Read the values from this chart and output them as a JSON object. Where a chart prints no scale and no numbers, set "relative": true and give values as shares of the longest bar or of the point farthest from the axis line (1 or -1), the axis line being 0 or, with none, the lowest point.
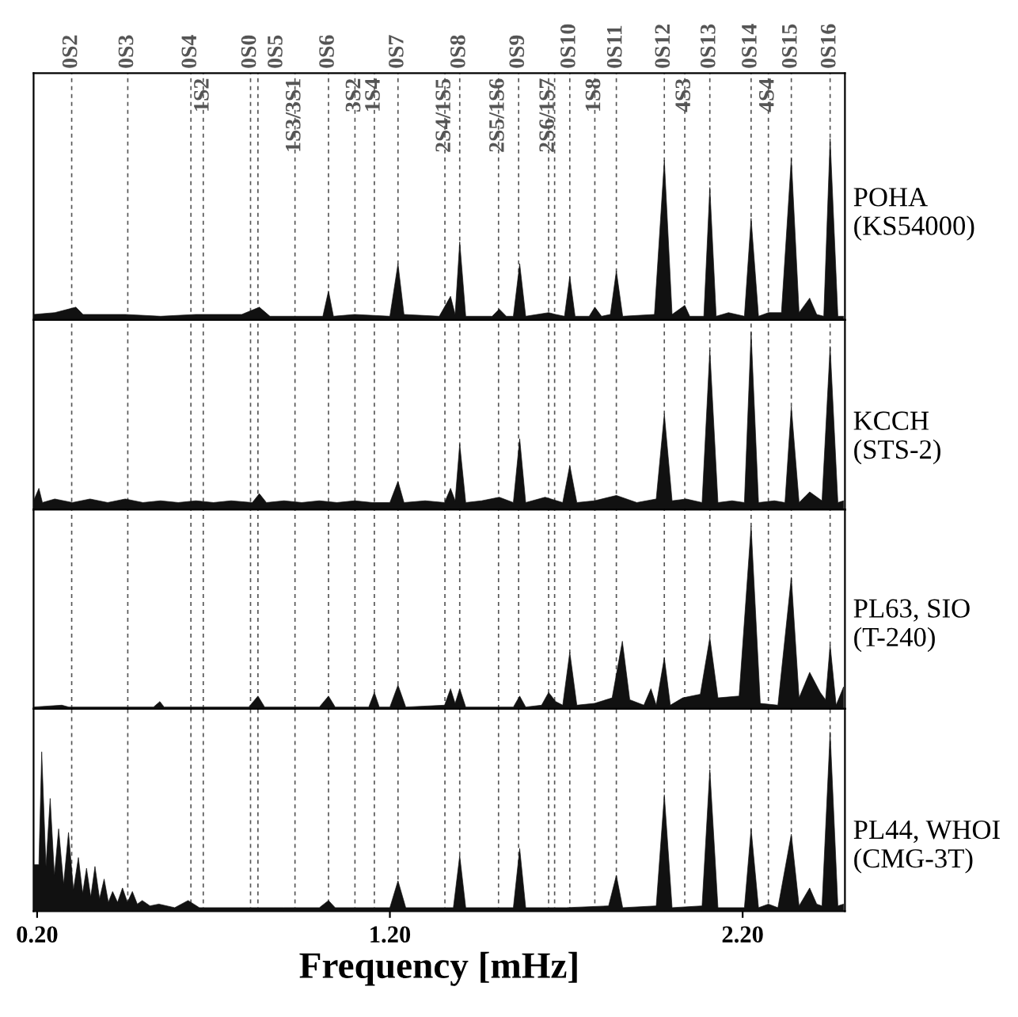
{
  "chart_data": [
    {
      "type": "area",
      "relative": true,
      "xlim": [
        0.19,
        2.49
      ],
      "tick_labels": false,
      "annotations": [
        "POHA\n(KS54000)",
        {
          "text": "1S2",
          "x": 0.671
        },
        {
          "text": "1S3/3S1",
          "x": 0.931
        },
        {
          "text": "3S2",
          "x": 1.101
        },
        {
          "text": "1S4",
          "x": 1.156
        },
        {
          "text": "2S4/1S5",
          "x": 1.356
        },
        {
          "text": "2S5/1S6",
          "x": 1.508
        },
        {
          "text": "2S6/1S7",
          "x": 1.65
        },
        {
          "text": "1S8",
          "x": 1.781
        },
        {
          "text": "4S3",
          "x": 2.036
        },
        {
          "text": "4S4",
          "x": 2.273
        }
      ],
      "series": [
        {
          "color": "#111111",
          "x": [
            0.19,
            0.25,
            0.31,
            0.33,
            0.45,
            0.55,
            0.65,
            0.78,
            0.83,
            0.86,
            0.95,
            1.01,
            1.026,
            1.04,
            1.1,
            1.2,
            1.223,
            1.24,
            1.34,
            1.372,
            1.385,
            1.398,
            1.415,
            1.49,
            1.51,
            1.53,
            1.55,
            1.568,
            1.585,
            1.65,
            1.67,
            1.695,
            1.71,
            1.725,
            1.765,
            1.781,
            1.8,
            1.825,
            1.842,
            1.86,
            1.95,
            1.978,
            2.0,
            2.036,
            2.05,
            2.09,
            2.107,
            2.125,
            2.16,
            2.205,
            2.224,
            2.245,
            2.273,
            2.31,
            2.338,
            2.36,
            2.39,
            2.41,
            2.43,
            2.448,
            2.47,
            2.486
          ],
          "values": [
            0.03,
            0.04,
            0.07,
            0.03,
            0.03,
            0.02,
            0.03,
            0.03,
            0.07,
            0.02,
            0.02,
            0.02,
            0.16,
            0.02,
            0.03,
            0.02,
            0.31,
            0.03,
            0.02,
            0.13,
            0.03,
            0.43,
            0.02,
            0.02,
            0.06,
            0.02,
            0.02,
            0.31,
            0.02,
            0.04,
            0.03,
            0.02,
            0.24,
            0.02,
            0.02,
            0.07,
            0.02,
            0.03,
            0.27,
            0.02,
            0.03,
            0.88,
            0.03,
            0.08,
            0.02,
            0.02,
            0.73,
            0.02,
            0.04,
            0.02,
            0.56,
            0.02,
            0.04,
            0.04,
            0.89,
            0.04,
            0.12,
            0.03,
            0.02,
            1.0,
            0.02,
            0.02
          ]
        }
      ],
      "ref_lines": [
        {
          "axis": "x",
          "value": 0.298,
          "label": "0S2",
          "color": "#555555",
          "line_style": "dashed"
        },
        {
          "axis": "x",
          "value": 0.457,
          "label": "0S3",
          "color": "#555555",
          "line_style": "dashed"
        },
        {
          "axis": "x",
          "value": 0.636,
          "label": "0S4",
          "color": "#555555",
          "line_style": "dashed"
        },
        {
          "axis": "x",
          "value": 0.671,
          "label": null,
          "color": "#555555",
          "line_style": "dashed"
        },
        {
          "axis": "x",
          "value": 0.805,
          "label": "0S0",
          "color": "#555555",
          "line_style": "dashed"
        },
        {
          "axis": "x",
          "value": 0.826,
          "label": "0S5",
          "color": "#555555",
          "line_style": "dashed"
        },
        {
          "axis": "x",
          "value": 0.931,
          "label": null,
          "color": "#555555",
          "line_style": "dashed"
        },
        {
          "axis": "x",
          "value": 1.026,
          "label": "0S6",
          "color": "#555555",
          "line_style": "dashed"
        },
        {
          "axis": "x",
          "value": 1.101,
          "label": null,
          "color": "#555555",
          "line_style": "dashed"
        },
        {
          "axis": "x",
          "value": 1.156,
          "label": null,
          "color": "#555555",
          "line_style": "dashed"
        },
        {
          "axis": "x",
          "value": 1.223,
          "label": "0S7",
          "color": "#555555",
          "line_style": "dashed"
        },
        {
          "axis": "x",
          "value": 1.356,
          "label": null,
          "color": "#555555",
          "line_style": "dashed"
        },
        {
          "axis": "x",
          "value": 1.398,
          "label": "0S8",
          "color": "#555555",
          "line_style": "dashed"
        },
        {
          "axis": "x",
          "value": 1.508,
          "label": null,
          "color": "#555555",
          "line_style": "dashed"
        },
        {
          "axis": "x",
          "value": 1.565,
          "label": "0S9",
          "color": "#555555",
          "line_style": "dashed"
        },
        {
          "axis": "x",
          "value": 1.65,
          "label": null,
          "color": "#555555",
          "line_style": "dashed"
        },
        {
          "axis": "x",
          "value": 1.667,
          "label": null,
          "color": "#555555",
          "line_style": "dashed"
        },
        {
          "axis": "x",
          "value": 1.71,
          "label": "0S10",
          "color": "#555555",
          "line_style": "dashed"
        },
        {
          "axis": "x",
          "value": 1.781,
          "label": null,
          "color": "#555555",
          "line_style": "dashed"
        },
        {
          "axis": "x",
          "value": 1.842,
          "label": "0S11",
          "color": "#555555",
          "line_style": "dashed"
        },
        {
          "axis": "x",
          "value": 1.978,
          "label": "0S12",
          "color": "#555555",
          "line_style": "dashed"
        },
        {
          "axis": "x",
          "value": 2.036,
          "label": null,
          "color": "#555555",
          "line_style": "dashed"
        },
        {
          "axis": "x",
          "value": 2.107,
          "label": "0S13",
          "color": "#555555",
          "line_style": "dashed"
        },
        {
          "axis": "x",
          "value": 2.224,
          "label": "0S14",
          "color": "#555555",
          "line_style": "dashed"
        },
        {
          "axis": "x",
          "value": 2.273,
          "label": null,
          "color": "#555555",
          "line_style": "dashed"
        },
        {
          "axis": "x",
          "value": 2.338,
          "label": "0S15",
          "color": "#555555",
          "line_style": "dashed"
        },
        {
          "axis": "x",
          "value": 2.448,
          "label": "0S16",
          "color": "#555555",
          "line_style": "dashed"
        }
      ]
    },
    {
      "type": "area",
      "relative": true,
      "xlim": [
        0.19,
        2.49
      ],
      "tick_labels": false,
      "annotations": [
        "KCCH\n(STS-2)"
      ],
      "series": [
        {
          "color": "#111111",
          "x": [
            0.19,
            0.205,
            0.215,
            0.25,
            0.3,
            0.35,
            0.4,
            0.45,
            0.5,
            0.55,
            0.6,
            0.65,
            0.7,
            0.75,
            0.81,
            0.83,
            0.85,
            0.9,
            0.95,
            1.0,
            1.05,
            1.1,
            1.15,
            1.2,
            1.223,
            1.24,
            1.3,
            1.355,
            1.372,
            1.385,
            1.398,
            1.415,
            1.46,
            1.51,
            1.55,
            1.568,
            1.585,
            1.64,
            1.69,
            1.71,
            1.73,
            1.78,
            1.842,
            1.9,
            1.955,
            1.978,
            2.0,
            2.04,
            2.085,
            2.107,
            2.13,
            2.17,
            2.205,
            2.224,
            2.245,
            2.29,
            2.32,
            2.338,
            2.36,
            2.39,
            2.425,
            2.448,
            2.47,
            2.486
          ],
          "values": [
            0.05,
            0.12,
            0.04,
            0.06,
            0.04,
            0.06,
            0.04,
            0.06,
            0.04,
            0.05,
            0.04,
            0.05,
            0.04,
            0.05,
            0.04,
            0.09,
            0.04,
            0.05,
            0.04,
            0.05,
            0.04,
            0.05,
            0.04,
            0.04,
            0.16,
            0.04,
            0.05,
            0.04,
            0.12,
            0.05,
            0.37,
            0.04,
            0.05,
            0.07,
            0.04,
            0.4,
            0.04,
            0.07,
            0.04,
            0.25,
            0.04,
            0.05,
            0.08,
            0.04,
            0.06,
            0.54,
            0.05,
            0.06,
            0.04,
            0.9,
            0.04,
            0.05,
            0.04,
            1.0,
            0.04,
            0.05,
            0.04,
            0.58,
            0.04,
            0.1,
            0.05,
            0.92,
            0.04,
            0.05
          ]
        }
      ],
      "ref_lines": [
        {
          "axis": "x",
          "value": 0.298,
          "color": "#555555",
          "line_style": "dashed"
        },
        {
          "axis": "x",
          "value": 0.457,
          "color": "#555555",
          "line_style": "dashed"
        },
        {
          "axis": "x",
          "value": 0.636,
          "color": "#555555",
          "line_style": "dashed"
        },
        {
          "axis": "x",
          "value": 0.671,
          "color": "#555555",
          "line_style": "dashed"
        },
        {
          "axis": "x",
          "value": 0.805,
          "color": "#555555",
          "line_style": "dashed"
        },
        {
          "axis": "x",
          "value": 0.826,
          "color": "#555555",
          "line_style": "dashed"
        },
        {
          "axis": "x",
          "value": 0.931,
          "color": "#555555",
          "line_style": "dashed"
        },
        {
          "axis": "x",
          "value": 1.026,
          "color": "#555555",
          "line_style": "dashed"
        },
        {
          "axis": "x",
          "value": 1.101,
          "color": "#555555",
          "line_style": "dashed"
        },
        {
          "axis": "x",
          "value": 1.156,
          "color": "#555555",
          "line_style": "dashed"
        },
        {
          "axis": "x",
          "value": 1.223,
          "color": "#555555",
          "line_style": "dashed"
        },
        {
          "axis": "x",
          "value": 1.356,
          "color": "#555555",
          "line_style": "dashed"
        },
        {
          "axis": "x",
          "value": 1.398,
          "color": "#555555",
          "line_style": "dashed"
        },
        {
          "axis": "x",
          "value": 1.508,
          "color": "#555555",
          "line_style": "dashed"
        },
        {
          "axis": "x",
          "value": 1.565,
          "color": "#555555",
          "line_style": "dashed"
        },
        {
          "axis": "x",
          "value": 1.65,
          "color": "#555555",
          "line_style": "dashed"
        },
        {
          "axis": "x",
          "value": 1.667,
          "color": "#555555",
          "line_style": "dashed"
        },
        {
          "axis": "x",
          "value": 1.71,
          "color": "#555555",
          "line_style": "dashed"
        },
        {
          "axis": "x",
          "value": 1.781,
          "color": "#555555",
          "line_style": "dashed"
        },
        {
          "axis": "x",
          "value": 1.842,
          "color": "#555555",
          "line_style": "dashed"
        },
        {
          "axis": "x",
          "value": 1.978,
          "color": "#555555",
          "line_style": "dashed"
        },
        {
          "axis": "x",
          "value": 2.036,
          "color": "#555555",
          "line_style": "dashed"
        },
        {
          "axis": "x",
          "value": 2.107,
          "color": "#555555",
          "line_style": "dashed"
        },
        {
          "axis": "x",
          "value": 2.224,
          "color": "#555555",
          "line_style": "dashed"
        },
        {
          "axis": "x",
          "value": 2.273,
          "color": "#555555",
          "line_style": "dashed"
        },
        {
          "axis": "x",
          "value": 2.338,
          "color": "#555555",
          "line_style": "dashed"
        },
        {
          "axis": "x",
          "value": 2.448,
          "color": "#555555",
          "line_style": "dashed"
        }
      ]
    },
    {
      "type": "area",
      "relative": true,
      "xlim": [
        0.19,
        2.49
      ],
      "tick_labels": false,
      "annotations": [
        "PL63, SIO\n(T-240)"
      ],
      "series": [
        {
          "color": "#111111",
          "x": [
            0.19,
            0.27,
            0.29,
            0.53,
            0.548,
            0.56,
            0.8,
            0.826,
            0.845,
            1.0,
            1.026,
            1.045,
            1.14,
            1.156,
            1.17,
            1.2,
            1.223,
            1.245,
            1.355,
            1.372,
            1.385,
            1.398,
            1.415,
            1.55,
            1.568,
            1.585,
            1.63,
            1.65,
            1.67,
            1.69,
            1.71,
            1.73,
            1.78,
            1.83,
            1.859,
            1.88,
            1.92,
            1.94,
            1.955,
            1.978,
            1.995,
            2.03,
            2.08,
            2.107,
            2.13,
            2.19,
            2.224,
            2.25,
            2.3,
            2.338,
            2.36,
            2.39,
            2.42,
            2.435,
            2.448,
            2.465,
            2.486
          ],
          "values": [
            0.01,
            0.02,
            0.01,
            0.01,
            0.04,
            0.01,
            0.01,
            0.07,
            0.01,
            0.01,
            0.07,
            0.01,
            0.01,
            0.09,
            0.01,
            0.01,
            0.13,
            0.01,
            0.02,
            0.11,
            0.03,
            0.11,
            0.01,
            0.01,
            0.07,
            0.01,
            0.02,
            0.09,
            0.04,
            0.02,
            0.31,
            0.02,
            0.03,
            0.06,
            0.37,
            0.05,
            0.02,
            0.11,
            0.02,
            0.28,
            0.02,
            0.06,
            0.08,
            0.39,
            0.06,
            0.07,
            1.0,
            0.03,
            0.02,
            0.72,
            0.06,
            0.2,
            0.09,
            0.05,
            0.35,
            0.02,
            0.12
          ]
        }
      ],
      "ref_lines": [
        {
          "axis": "x",
          "value": 0.298,
          "color": "#555555",
          "line_style": "dashed"
        },
        {
          "axis": "x",
          "value": 0.457,
          "color": "#555555",
          "line_style": "dashed"
        },
        {
          "axis": "x",
          "value": 0.636,
          "color": "#555555",
          "line_style": "dashed"
        },
        {
          "axis": "x",
          "value": 0.671,
          "color": "#555555",
          "line_style": "dashed"
        },
        {
          "axis": "x",
          "value": 0.805,
          "color": "#555555",
          "line_style": "dashed"
        },
        {
          "axis": "x",
          "value": 0.826,
          "color": "#555555",
          "line_style": "dashed"
        },
        {
          "axis": "x",
          "value": 0.931,
          "color": "#555555",
          "line_style": "dashed"
        },
        {
          "axis": "x",
          "value": 1.026,
          "color": "#555555",
          "line_style": "dashed"
        },
        {
          "axis": "x",
          "value": 1.101,
          "color": "#555555",
          "line_style": "dashed"
        },
        {
          "axis": "x",
          "value": 1.156,
          "color": "#555555",
          "line_style": "dashed"
        },
        {
          "axis": "x",
          "value": 1.223,
          "color": "#555555",
          "line_style": "dashed"
        },
        {
          "axis": "x",
          "value": 1.356,
          "color": "#555555",
          "line_style": "dashed"
        },
        {
          "axis": "x",
          "value": 1.398,
          "color": "#555555",
          "line_style": "dashed"
        },
        {
          "axis": "x",
          "value": 1.508,
          "color": "#555555",
          "line_style": "dashed"
        },
        {
          "axis": "x",
          "value": 1.565,
          "color": "#555555",
          "line_style": "dashed"
        },
        {
          "axis": "x",
          "value": 1.65,
          "color": "#555555",
          "line_style": "dashed"
        },
        {
          "axis": "x",
          "value": 1.667,
          "color": "#555555",
          "line_style": "dashed"
        },
        {
          "axis": "x",
          "value": 1.71,
          "color": "#555555",
          "line_style": "dashed"
        },
        {
          "axis": "x",
          "value": 1.781,
          "color": "#555555",
          "line_style": "dashed"
        },
        {
          "axis": "x",
          "value": 1.842,
          "color": "#555555",
          "line_style": "dashed"
        },
        {
          "axis": "x",
          "value": 1.978,
          "color": "#555555",
          "line_style": "dashed"
        },
        {
          "axis": "x",
          "value": 2.036,
          "color": "#555555",
          "line_style": "dashed"
        },
        {
          "axis": "x",
          "value": 2.107,
          "color": "#555555",
          "line_style": "dashed"
        },
        {
          "axis": "x",
          "value": 2.224,
          "color": "#555555",
          "line_style": "dashed"
        },
        {
          "axis": "x",
          "value": 2.273,
          "color": "#555555",
          "line_style": "dashed"
        },
        {
          "axis": "x",
          "value": 2.338,
          "color": "#555555",
          "line_style": "dashed"
        },
        {
          "axis": "x",
          "value": 2.448,
          "color": "#555555",
          "line_style": "dashed"
        }
      ]
    },
    {
      "type": "area",
      "relative": true,
      "xlim": [
        0.19,
        2.49
      ],
      "tick_labels": "x",
      "xlabel": "Frequency [mHz]",
      "xticks": [
        {
          "value": 0.2,
          "label": "0.20"
        },
        {
          "value": 1.2,
          "label": "1.20"
        },
        {
          "value": 2.2,
          "label": "2.20"
        }
      ],
      "annotations": [
        "PL44, WHOI\n(CMG-3T)"
      ],
      "series": [
        {
          "color": "#111111",
          "x": [
            0.19,
            0.205,
            0.213,
            0.225,
            0.237,
            0.249,
            0.261,
            0.275,
            0.289,
            0.303,
            0.317,
            0.329,
            0.34,
            0.352,
            0.364,
            0.377,
            0.39,
            0.402,
            0.414,
            0.428,
            0.442,
            0.456,
            0.47,
            0.484,
            0.498,
            0.52,
            0.545,
            0.59,
            0.628,
            0.66,
            0.8,
            0.9,
            1.0,
            1.026,
            1.045,
            1.2,
            1.223,
            1.245,
            1.38,
            1.398,
            1.415,
            1.55,
            1.568,
            1.585,
            1.7,
            1.82,
            1.842,
            1.86,
            1.955,
            1.978,
            2.0,
            2.085,
            2.107,
            2.13,
            2.205,
            2.224,
            2.245,
            2.273,
            2.3,
            2.338,
            2.36,
            2.39,
            2.41,
            2.425,
            2.448,
            2.47,
            2.486
          ],
          "values": [
            0.26,
            0.26,
            0.89,
            0.25,
            0.63,
            0.2,
            0.46,
            0.15,
            0.44,
            0.12,
            0.3,
            0.1,
            0.24,
            0.08,
            0.25,
            0.07,
            0.18,
            0.05,
            0.11,
            0.05,
            0.13,
            0.05,
            0.11,
            0.04,
            0.06,
            0.03,
            0.04,
            0.02,
            0.06,
            0.02,
            0.02,
            0.02,
            0.02,
            0.06,
            0.02,
            0.02,
            0.17,
            0.02,
            0.02,
            0.31,
            0.02,
            0.02,
            0.35,
            0.02,
            0.02,
            0.03,
            0.2,
            0.02,
            0.03,
            0.65,
            0.02,
            0.03,
            0.79,
            0.02,
            0.02,
            0.46,
            0.02,
            0.04,
            0.02,
            0.43,
            0.03,
            0.13,
            0.04,
            0.03,
            1.0,
            0.03,
            0.04
          ]
        }
      ],
      "ref_lines": [
        {
          "axis": "x",
          "value": 0.298,
          "color": "#555555",
          "line_style": "dashed"
        },
        {
          "axis": "x",
          "value": 0.457,
          "color": "#555555",
          "line_style": "dashed"
        },
        {
          "axis": "x",
          "value": 0.636,
          "color": "#555555",
          "line_style": "dashed"
        },
        {
          "axis": "x",
          "value": 0.671,
          "color": "#555555",
          "line_style": "dashed"
        },
        {
          "axis": "x",
          "value": 0.805,
          "color": "#555555",
          "line_style": "dashed"
        },
        {
          "axis": "x",
          "value": 0.826,
          "color": "#555555",
          "line_style": "dashed"
        },
        {
          "axis": "x",
          "value": 0.931,
          "color": "#555555",
          "line_style": "dashed"
        },
        {
          "axis": "x",
          "value": 1.026,
          "color": "#555555",
          "line_style": "dashed"
        },
        {
          "axis": "x",
          "value": 1.101,
          "color": "#555555",
          "line_style": "dashed"
        },
        {
          "axis": "x",
          "value": 1.156,
          "color": "#555555",
          "line_style": "dashed"
        },
        {
          "axis": "x",
          "value": 1.223,
          "color": "#555555",
          "line_style": "dashed"
        },
        {
          "axis": "x",
          "value": 1.356,
          "color": "#555555",
          "line_style": "dashed"
        },
        {
          "axis": "x",
          "value": 1.398,
          "color": "#555555",
          "line_style": "dashed"
        },
        {
          "axis": "x",
          "value": 1.508,
          "color": "#555555",
          "line_style": "dashed"
        },
        {
          "axis": "x",
          "value": 1.565,
          "color": "#555555",
          "line_style": "dashed"
        },
        {
          "axis": "x",
          "value": 1.65,
          "color": "#555555",
          "line_style": "dashed"
        },
        {
          "axis": "x",
          "value": 1.667,
          "color": "#555555",
          "line_style": "dashed"
        },
        {
          "axis": "x",
          "value": 1.71,
          "color": "#555555",
          "line_style": "dashed"
        },
        {
          "axis": "x",
          "value": 1.781,
          "color": "#555555",
          "line_style": "dashed"
        },
        {
          "axis": "x",
          "value": 1.842,
          "color": "#555555",
          "line_style": "dashed"
        },
        {
          "axis": "x",
          "value": 1.978,
          "color": "#555555",
          "line_style": "dashed"
        },
        {
          "axis": "x",
          "value": 2.036,
          "color": "#555555",
          "line_style": "dashed"
        },
        {
          "axis": "x",
          "value": 2.107,
          "color": "#555555",
          "line_style": "dashed"
        },
        {
          "axis": "x",
          "value": 2.224,
          "color": "#555555",
          "line_style": "dashed"
        },
        {
          "axis": "x",
          "value": 2.273,
          "color": "#555555",
          "line_style": "dashed"
        },
        {
          "axis": "x",
          "value": 2.338,
          "color": "#555555",
          "line_style": "dashed"
        },
        {
          "axis": "x",
          "value": 2.448,
          "color": "#555555",
          "line_style": "dashed"
        }
      ]
    }
  ]
}
